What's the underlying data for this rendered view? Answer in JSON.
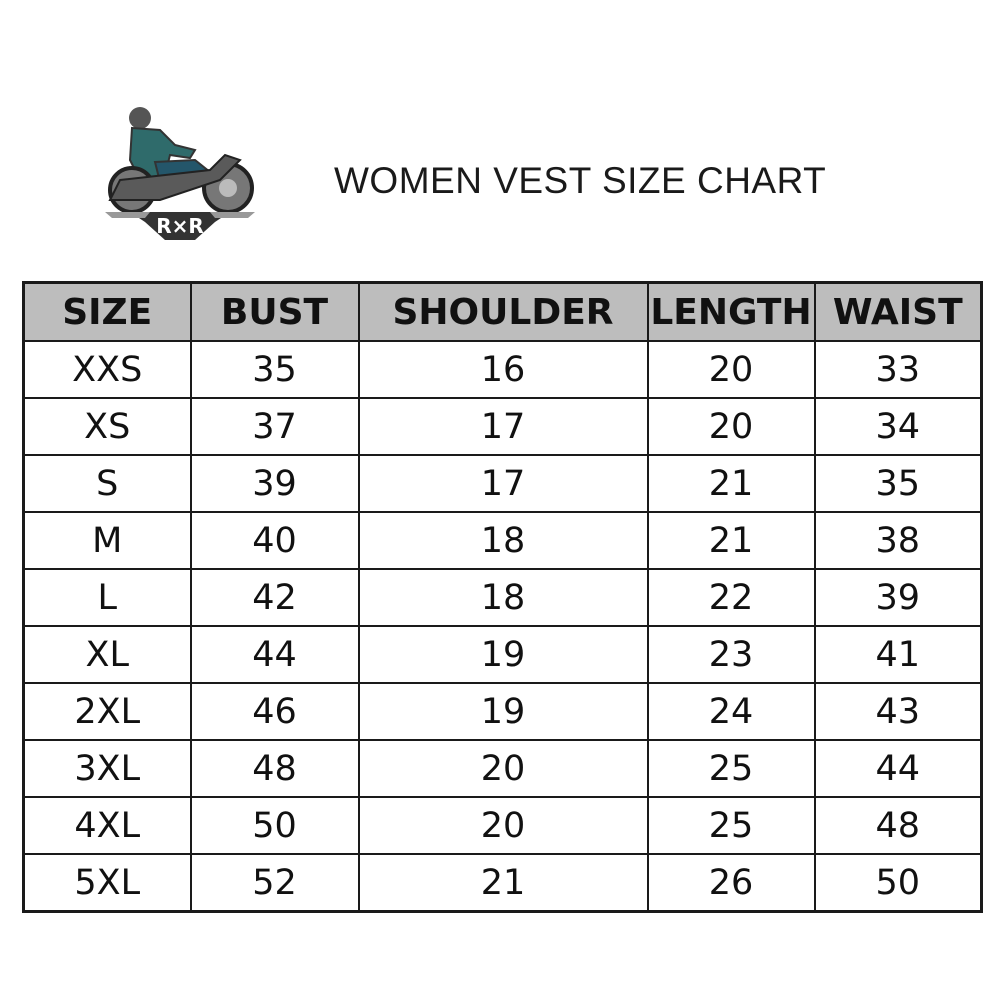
{
  "logo": {
    "text": "R×R",
    "colors": {
      "jacket": "#2f6b6b",
      "bike": "#5a5a5a"
    }
  },
  "title": "WOMEN VEST SIZE CHART",
  "table": {
    "header_bg": "#bdbdbd",
    "headers": [
      "SIZE",
      "BUST",
      "SHOULDER",
      "LENGTH",
      "WAIST"
    ],
    "rows": [
      [
        "XXS",
        "35",
        "16",
        "20",
        "33"
      ],
      [
        "XS",
        "37",
        "17",
        "20",
        "34"
      ],
      [
        "S",
        "39",
        "17",
        "21",
        "35"
      ],
      [
        "M",
        "40",
        "18",
        "21",
        "38"
      ],
      [
        "L",
        "42",
        "18",
        "22",
        "39"
      ],
      [
        "XL",
        "44",
        "19",
        "23",
        "41"
      ],
      [
        "2XL",
        "46",
        "19",
        "24",
        "43"
      ],
      [
        "3XL",
        "48",
        "20",
        "25",
        "44"
      ],
      [
        "4XL",
        "50",
        "20",
        "25",
        "48"
      ],
      [
        "5XL",
        "52",
        "21",
        "26",
        "50"
      ]
    ]
  }
}
